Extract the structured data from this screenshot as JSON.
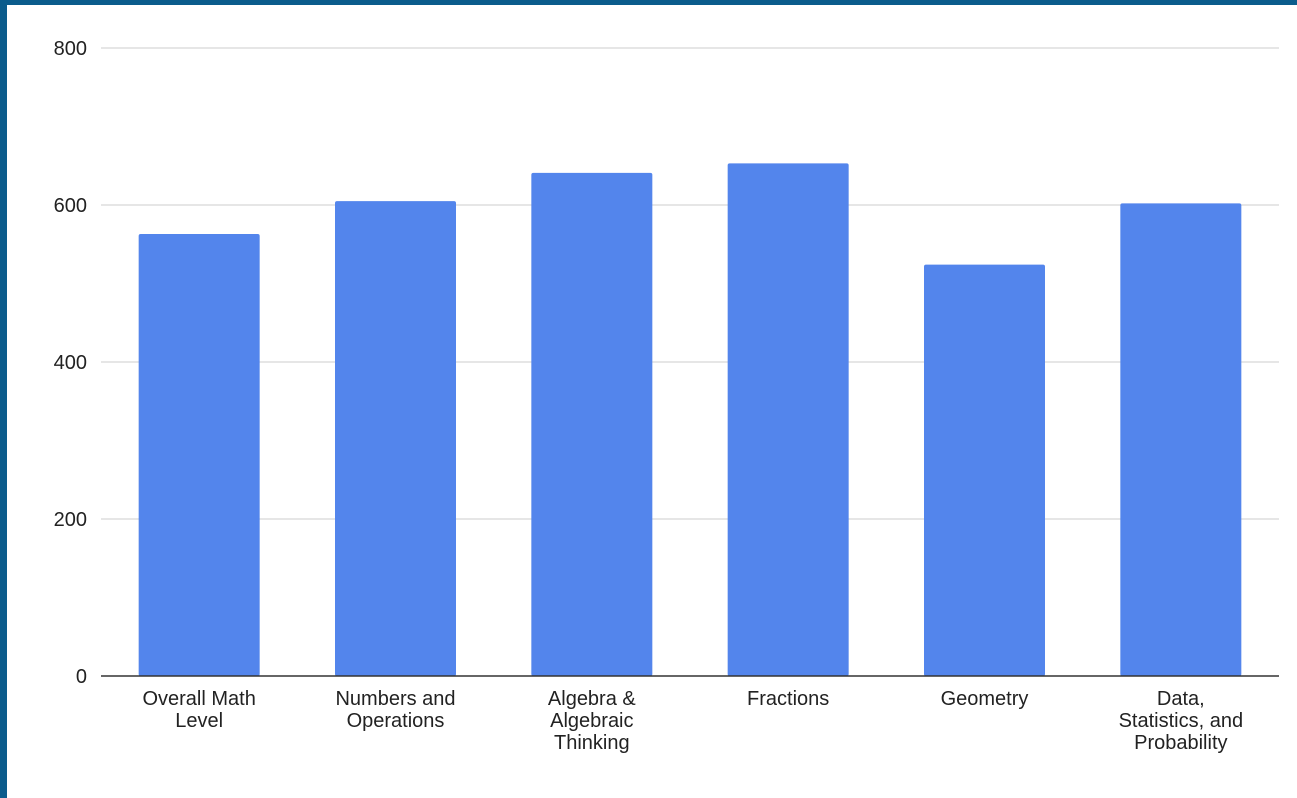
{
  "chart_data": {
    "type": "bar",
    "title": "",
    "xlabel": "",
    "ylabel": "",
    "ylim": [
      0,
      800
    ],
    "yticks": [
      0,
      200,
      400,
      600,
      800
    ],
    "grid": true,
    "bar_color": "#5385ec",
    "grid_color": "#cccccc",
    "axis_color": "#333333",
    "categories": [
      [
        "Overall Math",
        "Level"
      ],
      [
        "Numbers and",
        "Operations"
      ],
      [
        "Algebra &",
        "Algebraic",
        "Thinking"
      ],
      [
        "Fractions"
      ],
      [
        "Geometry"
      ],
      [
        "Data,",
        "Statistics, and",
        "Probability"
      ]
    ],
    "values": [
      563,
      605,
      641,
      653,
      524,
      602
    ]
  },
  "theme": {
    "border_color": "#0b5c8c",
    "background": "#ffffff"
  }
}
